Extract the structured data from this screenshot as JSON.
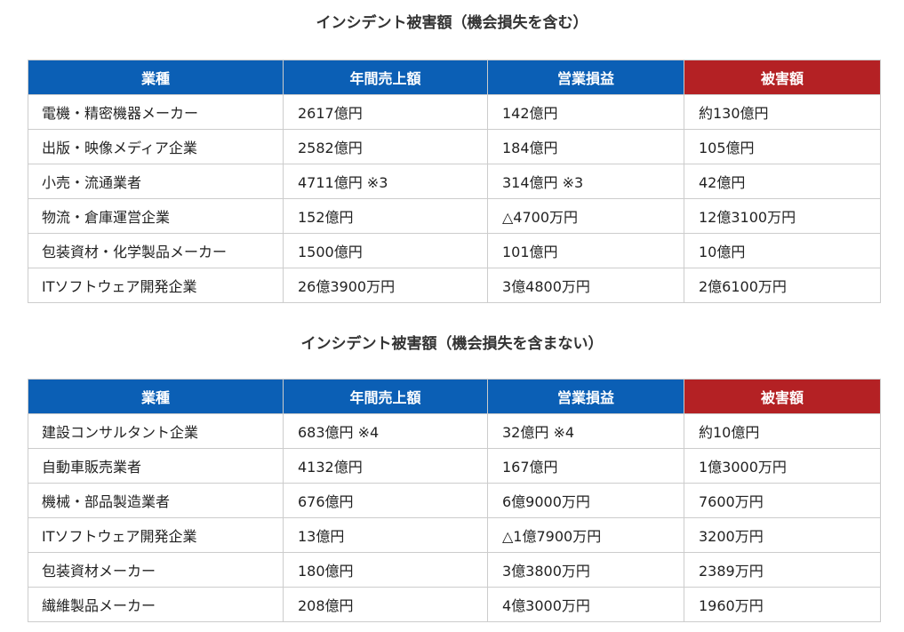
{
  "colors": {
    "header_blue": "#0b5fb5",
    "header_red": "#b42124"
  },
  "tables": [
    {
      "title": "インシデント被害額（機会損失を含む）",
      "headers": [
        "業種",
        "年間売上額",
        "営業損益",
        "被害額"
      ],
      "rows": [
        [
          "電機・精密機器メーカー",
          "2617億円",
          "142億円",
          "約130億円"
        ],
        [
          "出版・映像メディア企業",
          "2582億円",
          "184億円",
          "105億円"
        ],
        [
          "小売・流通業者",
          "4711億円 ※3",
          "314億円 ※3",
          "42億円"
        ],
        [
          "物流・倉庫運営企業",
          "152億円",
          "△4700万円",
          "12億3100万円"
        ],
        [
          "包装資材・化学製品メーカー",
          "1500億円",
          "101億円",
          "10億円"
        ],
        [
          "ITソフトウェア開発企業",
          "26億3900万円",
          "3億4800万円",
          "2億6100万円"
        ]
      ]
    },
    {
      "title": "インシデント被害額（機会損失を含まない）",
      "headers": [
        "業種",
        "年間売上額",
        "営業損益",
        "被害額"
      ],
      "rows": [
        [
          "建設コンサルタント企業",
          "683億円 ※4",
          "32億円 ※4",
          "約10億円"
        ],
        [
          "自動車販売業者",
          "4132億円",
          "167億円",
          "1億3000万円"
        ],
        [
          "機械・部品製造業者",
          "676億円",
          "6億9000万円",
          "7600万円"
        ],
        [
          "ITソフトウェア開発企業",
          "13億円",
          "△1億7900万円",
          "3200万円"
        ],
        [
          "包装資材メーカー",
          "180億円",
          "3億3800万円",
          "2389万円"
        ],
        [
          "繊維製品メーカー",
          "208億円",
          "4億3000万円",
          "1960万円"
        ]
      ]
    }
  ]
}
